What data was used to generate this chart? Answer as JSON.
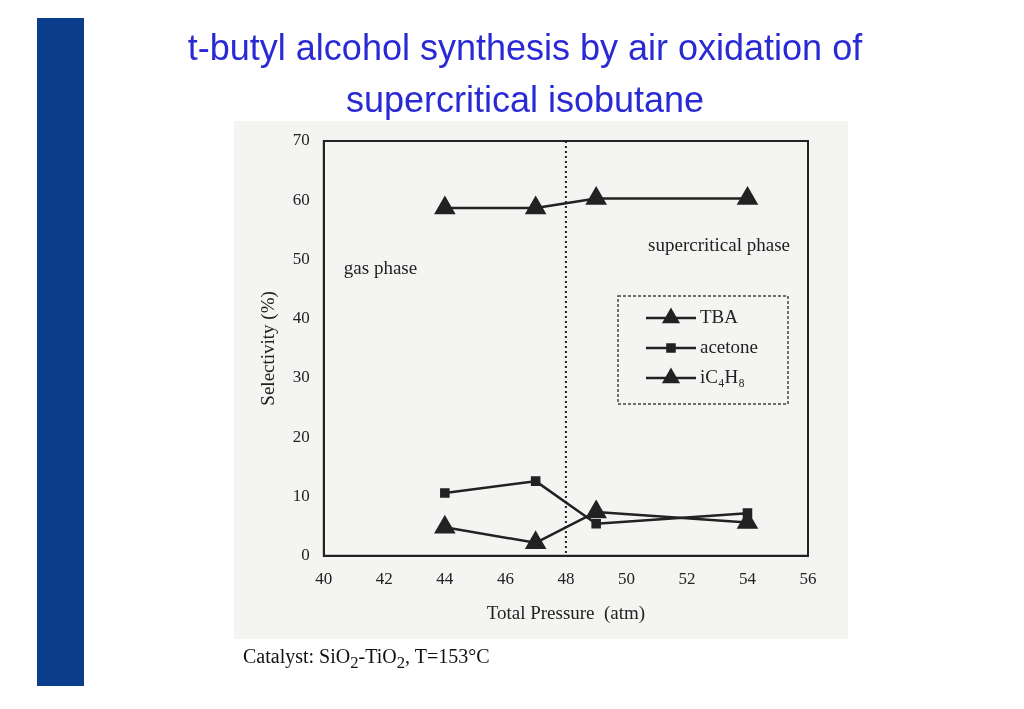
{
  "chart_data": {
    "type": "line",
    "title": "t-butyl alcohol synthesis by air oxidation of supercritical isobutane",
    "xlabel": "Total Pressure  (atm)",
    "ylabel": "Selectivity (%)",
    "x": [
      44,
      47,
      49,
      54
    ],
    "series": [
      {
        "name": "TBA",
        "color": "#222222",
        "marker": "triangle",
        "values": [
          58.7,
          58.7,
          60.3,
          60.3
        ]
      },
      {
        "name": "acetone",
        "color": "#222222",
        "marker": "square",
        "values": [
          10.6,
          12.6,
          5.4,
          7.2
        ]
      },
      {
        "name": "iC₄H₈",
        "color": "#222222",
        "marker": "triangle",
        "values": [
          4.8,
          2.2,
          7.4,
          5.6
        ]
      }
    ],
    "xlim": [
      40,
      56
    ],
    "xticks": [
      40,
      42,
      44,
      46,
      48,
      50,
      52,
      54,
      56
    ],
    "ylim": [
      0,
      70
    ],
    "yticks": [
      0,
      10,
      20,
      30,
      40,
      50,
      60,
      70
    ],
    "ref_lines": [
      {
        "axis": "x",
        "value": 48,
        "line_style": "dotted",
        "color": "#222222"
      }
    ],
    "annotations": [
      "gas phase",
      "supercritical phase",
      "Catalyst: SiO$_{2}$-TiO$_{2}$, T=153°C"
    ],
    "legend": "right",
    "grid": false,
    "line_style": "solid"
  }
}
